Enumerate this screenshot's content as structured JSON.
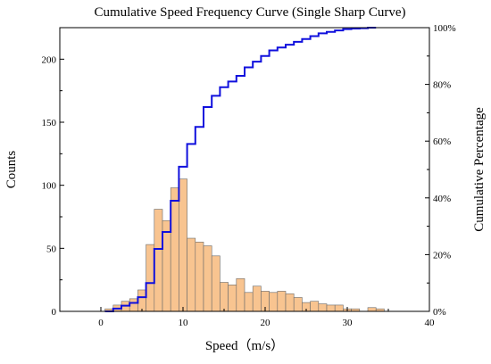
{
  "chart_data": {
    "type": "bar",
    "title": "Cumulative Speed Frequency Curve (Single Sharp Curve)",
    "xlabel": "Speed（m/s）",
    "ylabel": "Counts",
    "y2label": "Cumulative Percentage",
    "xlim": [
      -5,
      40
    ],
    "ylim": [
      0,
      225
    ],
    "y2lim": [
      0,
      100
    ],
    "x_ticks": [
      0,
      10,
      20,
      30,
      40
    ],
    "y_ticks": [
      0,
      50,
      100,
      150,
      200
    ],
    "y2_ticks": [
      0,
      20,
      40,
      60,
      80,
      100
    ],
    "y2_tick_labels": [
      "0%",
      "20%",
      "40%",
      "60%",
      "80%",
      "100%"
    ],
    "bin_width": 1,
    "histogram": {
      "bin_starts": [
        0.5,
        1.5,
        2.5,
        3.5,
        4.5,
        5.5,
        6.5,
        7.5,
        8.5,
        9.5,
        10.5,
        11.5,
        12.5,
        13.5,
        14.5,
        15.5,
        16.5,
        17.5,
        18.5,
        19.5,
        20.5,
        21.5,
        22.5,
        23.5,
        24.5,
        25.5,
        26.5,
        27.5,
        28.5,
        29.5,
        30.5,
        31.5,
        32.5,
        33.5
      ],
      "counts": [
        2,
        5,
        8,
        10,
        17,
        53,
        81,
        72,
        98,
        105,
        58,
        55,
        52,
        44,
        23,
        21,
        26,
        15,
        20,
        16,
        15,
        16,
        14,
        11,
        7,
        8,
        6,
        5,
        5,
        2,
        2,
        0,
        3,
        2
      ],
      "color": "#f8c490"
    },
    "cumulative": {
      "x": [
        0.5,
        1.5,
        2.5,
        3.5,
        4.5,
        5.5,
        6.5,
        7.5,
        8.5,
        9.5,
        10.5,
        11.5,
        12.5,
        13.5,
        14.5,
        15.5,
        16.5,
        17.5,
        18.5,
        19.5,
        20.5,
        21.5,
        22.5,
        23.5,
        24.5,
        25.5,
        26.5,
        27.5,
        28.5,
        29.5,
        30.5,
        31.5,
        32.5
      ],
      "percent": [
        0,
        1,
        2,
        3,
        5,
        10,
        22,
        28,
        39,
        51,
        59,
        65,
        72,
        76,
        79,
        81,
        83,
        86,
        88,
        90,
        92,
        93,
        94,
        95,
        96,
        97,
        98,
        98.5,
        99,
        99.5,
        99.7,
        99.8,
        100
      ],
      "color": "#1010dd"
    }
  }
}
